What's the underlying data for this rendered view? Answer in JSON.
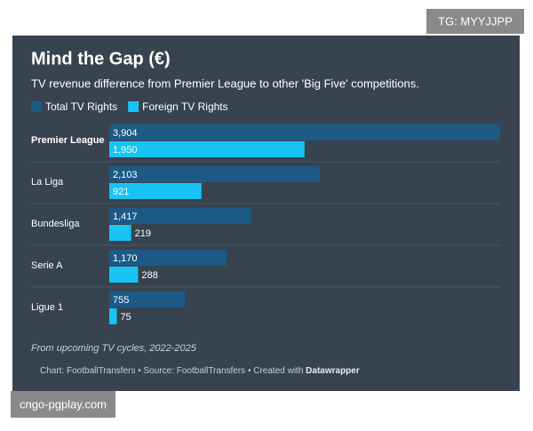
{
  "chart_data": {
    "type": "bar",
    "orientation": "horizontal",
    "title": "Mind the Gap (€)",
    "subtitle": "TV revenue difference from Premier League to other 'Big Five' competitions.",
    "categories": [
      "Premier League",
      "La Liga",
      "Bundesliga",
      "Serie A",
      "Ligue 1"
    ],
    "series": [
      {
        "name": "Total TV Rights",
        "color": "#1c5a85",
        "values": [
          3904,
          2103,
          1417,
          1170,
          755
        ],
        "value_labels": [
          "3,904",
          "2,103",
          "1,417",
          "1,170",
          "755"
        ]
      },
      {
        "name": "Foreign TV Rights",
        "color": "#18c4f3",
        "values": [
          1950,
          921,
          219,
          288,
          75
        ],
        "value_labels": [
          "1,950",
          "921",
          "219",
          "288",
          "75"
        ]
      }
    ],
    "note": "From upcoming TV cycles, 2022-2025",
    "source": "Chart: FootballTransfers • Source: FootballTransfers • Created with",
    "credit": "Datawrapper"
  },
  "watermarks": [
    "TG: MYYJJPP",
    "cngo-pgplay.com"
  ]
}
